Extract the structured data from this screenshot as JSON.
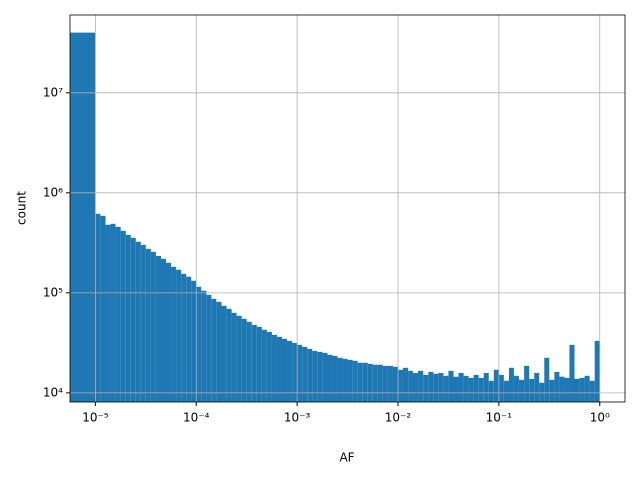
{
  "chart_data": {
    "type": "histogram",
    "xlabel": "AF",
    "ylabel": "count",
    "color": "#1f77b4",
    "grid": true,
    "xscale": "log",
    "yscale": "log",
    "xlim": [
      5.6e-06,
      1.78
    ],
    "ylim": [
      8100,
      60000000
    ],
    "xticks": [
      {
        "value": 1e-05,
        "label": "10⁻⁵"
      },
      {
        "value": 0.0001,
        "label": "10⁻⁴"
      },
      {
        "value": 0.001,
        "label": "10⁻³"
      },
      {
        "value": 0.01,
        "label": "10⁻²"
      },
      {
        "value": 0.1,
        "label": "10⁻¹"
      },
      {
        "value": 1,
        "label": "10⁰"
      }
    ],
    "yticks": [
      {
        "value": 10000,
        "label": "10⁴"
      },
      {
        "value": 100000,
        "label": "10⁵"
      },
      {
        "value": 1000000,
        "label": "10⁶"
      },
      {
        "value": 10000000,
        "label": "10⁷"
      }
    ],
    "bins": [
      5.6e-06,
      1e-05,
      1.12e-05,
      1.26e-05,
      1.41e-05,
      1.58e-05,
      1.78e-05,
      2e-05,
      2.24e-05,
      2.51e-05,
      2.82e-05,
      3.16e-05,
      3.55e-05,
      3.98e-05,
      4.47e-05,
      5.01e-05,
      5.62e-05,
      6.31e-05,
      7.08e-05,
      7.94e-05,
      8.91e-05,
      0.0001,
      0.000112,
      0.000126,
      0.000141,
      0.000158,
      0.000178,
      0.0002,
      0.000224,
      0.000251,
      0.000282,
      0.000316,
      0.000355,
      0.000398,
      0.000447,
      0.000501,
      0.000562,
      0.000631,
      0.000708,
      0.000794,
      0.000891,
      0.001,
      0.00112,
      0.00126,
      0.00141,
      0.00158,
      0.00178,
      0.002,
      0.00224,
      0.00251,
      0.00282,
      0.00316,
      0.00355,
      0.00398,
      0.00447,
      0.00501,
      0.00562,
      0.00631,
      0.00708,
      0.00794,
      0.00891,
      0.01,
      0.0112,
      0.0126,
      0.0141,
      0.0158,
      0.0178,
      0.02,
      0.0224,
      0.0251,
      0.0282,
      0.0316,
      0.0355,
      0.0398,
      0.0447,
      0.0501,
      0.0562,
      0.0631,
      0.0708,
      0.0794,
      0.0891,
      0.1,
      0.112,
      0.126,
      0.141,
      0.158,
      0.178,
      0.2,
      0.224,
      0.251,
      0.282,
      0.316,
      0.355,
      0.398,
      0.447,
      0.501,
      0.562,
      0.631,
      0.708,
      0.794,
      0.891,
      1
    ],
    "values": [
      40000000,
      617000,
      589000,
      479000,
      490000,
      457000,
      417000,
      380000,
      355000,
      324000,
      302000,
      275000,
      257000,
      234000,
      219000,
      200000,
      182000,
      170000,
      155000,
      145000,
      132000,
      115000,
      105000,
      95500,
      87100,
      81300,
      74100,
      69200,
      63100,
      58900,
      55000,
      51300,
      47900,
      45700,
      42700,
      40700,
      38000,
      36300,
      34700,
      33100,
      31600,
      30200,
      28800,
      27500,
      26300,
      25700,
      25100,
      24000,
      23400,
      22400,
      21900,
      21400,
      20900,
      20000,
      20000,
      19500,
      19100,
      19100,
      18600,
      18600,
      18200,
      17000,
      17800,
      16600,
      15800,
      16600,
      15100,
      16200,
      15500,
      15800,
      14800,
      16600,
      14500,
      15800,
      14800,
      14100,
      15100,
      14100,
      15800,
      13200,
      17000,
      15100,
      13200,
      17800,
      14800,
      13500,
      18600,
      13800,
      15800,
      12600,
      22400,
      13500,
      16200,
      14500,
      14100,
      30200,
      13800,
      14100,
      14800,
      13200,
      33100
    ]
  }
}
